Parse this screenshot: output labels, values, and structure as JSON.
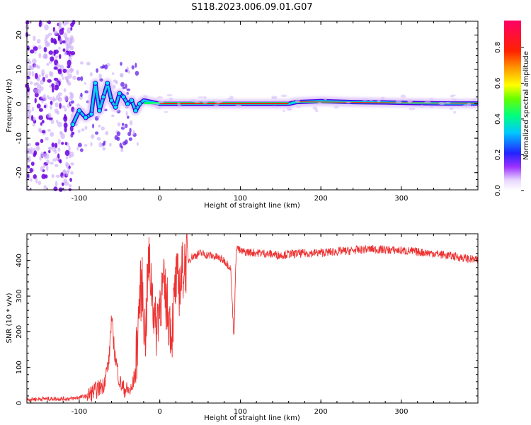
{
  "chart_data": [
    {
      "type": "heatmap",
      "title": "S118.2023.006.09.01.G07",
      "xlabel": "Height of straight line (km)",
      "ylabel": "Frequency (Hz)",
      "xlim": [
        -165,
        395
      ],
      "ylim": [
        -25,
        24
      ],
      "xticks": [
        -100,
        0,
        100,
        200,
        300
      ],
      "yticks": [
        -20,
        -10,
        0,
        10,
        20
      ],
      "colorbar": {
        "label": "Normalized spectral amplitude",
        "range": [
          0.0,
          0.95
        ],
        "ticks": [
          0.0,
          0.2,
          0.4,
          0.6,
          0.8
        ]
      },
      "ridge": {
        "x": [
          -108,
          -100,
          -92,
          -85,
          -80,
          -75,
          -70,
          -65,
          -60,
          -55,
          -50,
          -45,
          -40,
          -35,
          -30,
          -25,
          -20,
          0,
          50,
          100,
          160,
          170,
          200,
          240,
          280,
          320,
          360,
          395
        ],
        "frequency": [
          -6,
          -2,
          -4,
          -3,
          6,
          -2,
          2,
          6,
          1,
          -1,
          3,
          2,
          0,
          1,
          -2,
          0,
          1,
          0,
          0,
          0,
          0,
          0.5,
          0.8,
          0.5,
          0.4,
          0.2,
          0.1,
          0.1
        ]
      }
    },
    {
      "type": "line",
      "title": "",
      "xlabel": "Height of straight line (km)",
      "ylabel": "SNR (10 * v/v)",
      "xlim": [
        -165,
        395
      ],
      "ylim": [
        0,
        475
      ],
      "xticks": [
        -100,
        0,
        100,
        200,
        300
      ],
      "yticks": [
        0,
        100,
        200,
        300,
        400
      ],
      "color": "#ee3333",
      "series": [
        {
          "x": [
            -165,
            -140,
            -110,
            -90,
            -80,
            -70,
            -63,
            -60,
            -56,
            -50,
            -45,
            -40,
            -35,
            -30,
            -25,
            -22,
            -18,
            -14,
            -10,
            -5,
            0,
            5,
            10,
            15,
            20,
            25,
            30,
            40,
            50,
            70,
            80,
            88,
            92,
            95,
            100,
            130,
            150,
            160,
            200,
            240,
            260,
            280,
            300,
            340,
            370,
            395
          ],
          "y": [
            10,
            12,
            12,
            20,
            35,
            50,
            120,
            240,
            140,
            60,
            40,
            35,
            35,
            90,
            300,
            330,
            180,
            400,
            330,
            200,
            290,
            320,
            260,
            200,
            340,
            330,
            390,
            410,
            420,
            410,
            400,
            380,
            180,
            440,
            425,
            420,
            415,
            418,
            422,
            428,
            432,
            430,
            428,
            420,
            410,
            400
          ]
        }
      ]
    }
  ]
}
